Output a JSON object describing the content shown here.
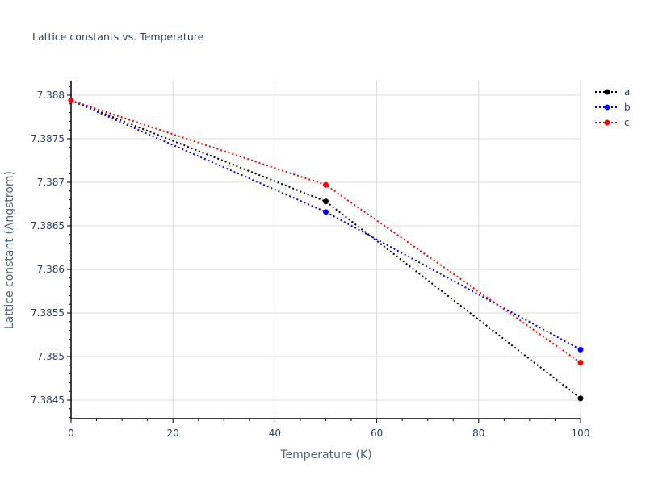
{
  "chart_data": {
    "type": "line",
    "title": "Lattice constants vs. Temperature",
    "xlabel": "Temperature (K)",
    "ylabel": "Lattice constant (Angstrom)",
    "x": [
      0,
      50,
      100
    ],
    "xlim": [
      0,
      100
    ],
    "ylim": [
      7.38429,
      7.38817
    ],
    "x_ticks": [
      "0",
      "20",
      "40",
      "60",
      "80",
      "100"
    ],
    "y_ticks": [
      "7.3845",
      "7.385",
      "7.3855",
      "7.386",
      "7.3865",
      "7.387",
      "7.3875",
      "7.388"
    ],
    "grid": true,
    "legend_position": "top-right",
    "line_style": "dotted with markers",
    "series": [
      {
        "name": "a",
        "color": "#000000",
        "values": [
          7.38794,
          7.38678,
          7.38452
        ]
      },
      {
        "name": "b",
        "color": "#0000ff",
        "values": [
          7.38794,
          7.38666,
          7.38508
        ]
      },
      {
        "name": "c",
        "color": "#ff0000",
        "values": [
          7.38794,
          7.38697,
          7.38493
        ]
      }
    ]
  },
  "colors": {
    "text": "#2a3f5f",
    "grid": "#dcdcdc",
    "axis": "#000000",
    "background": "#ffffff"
  }
}
